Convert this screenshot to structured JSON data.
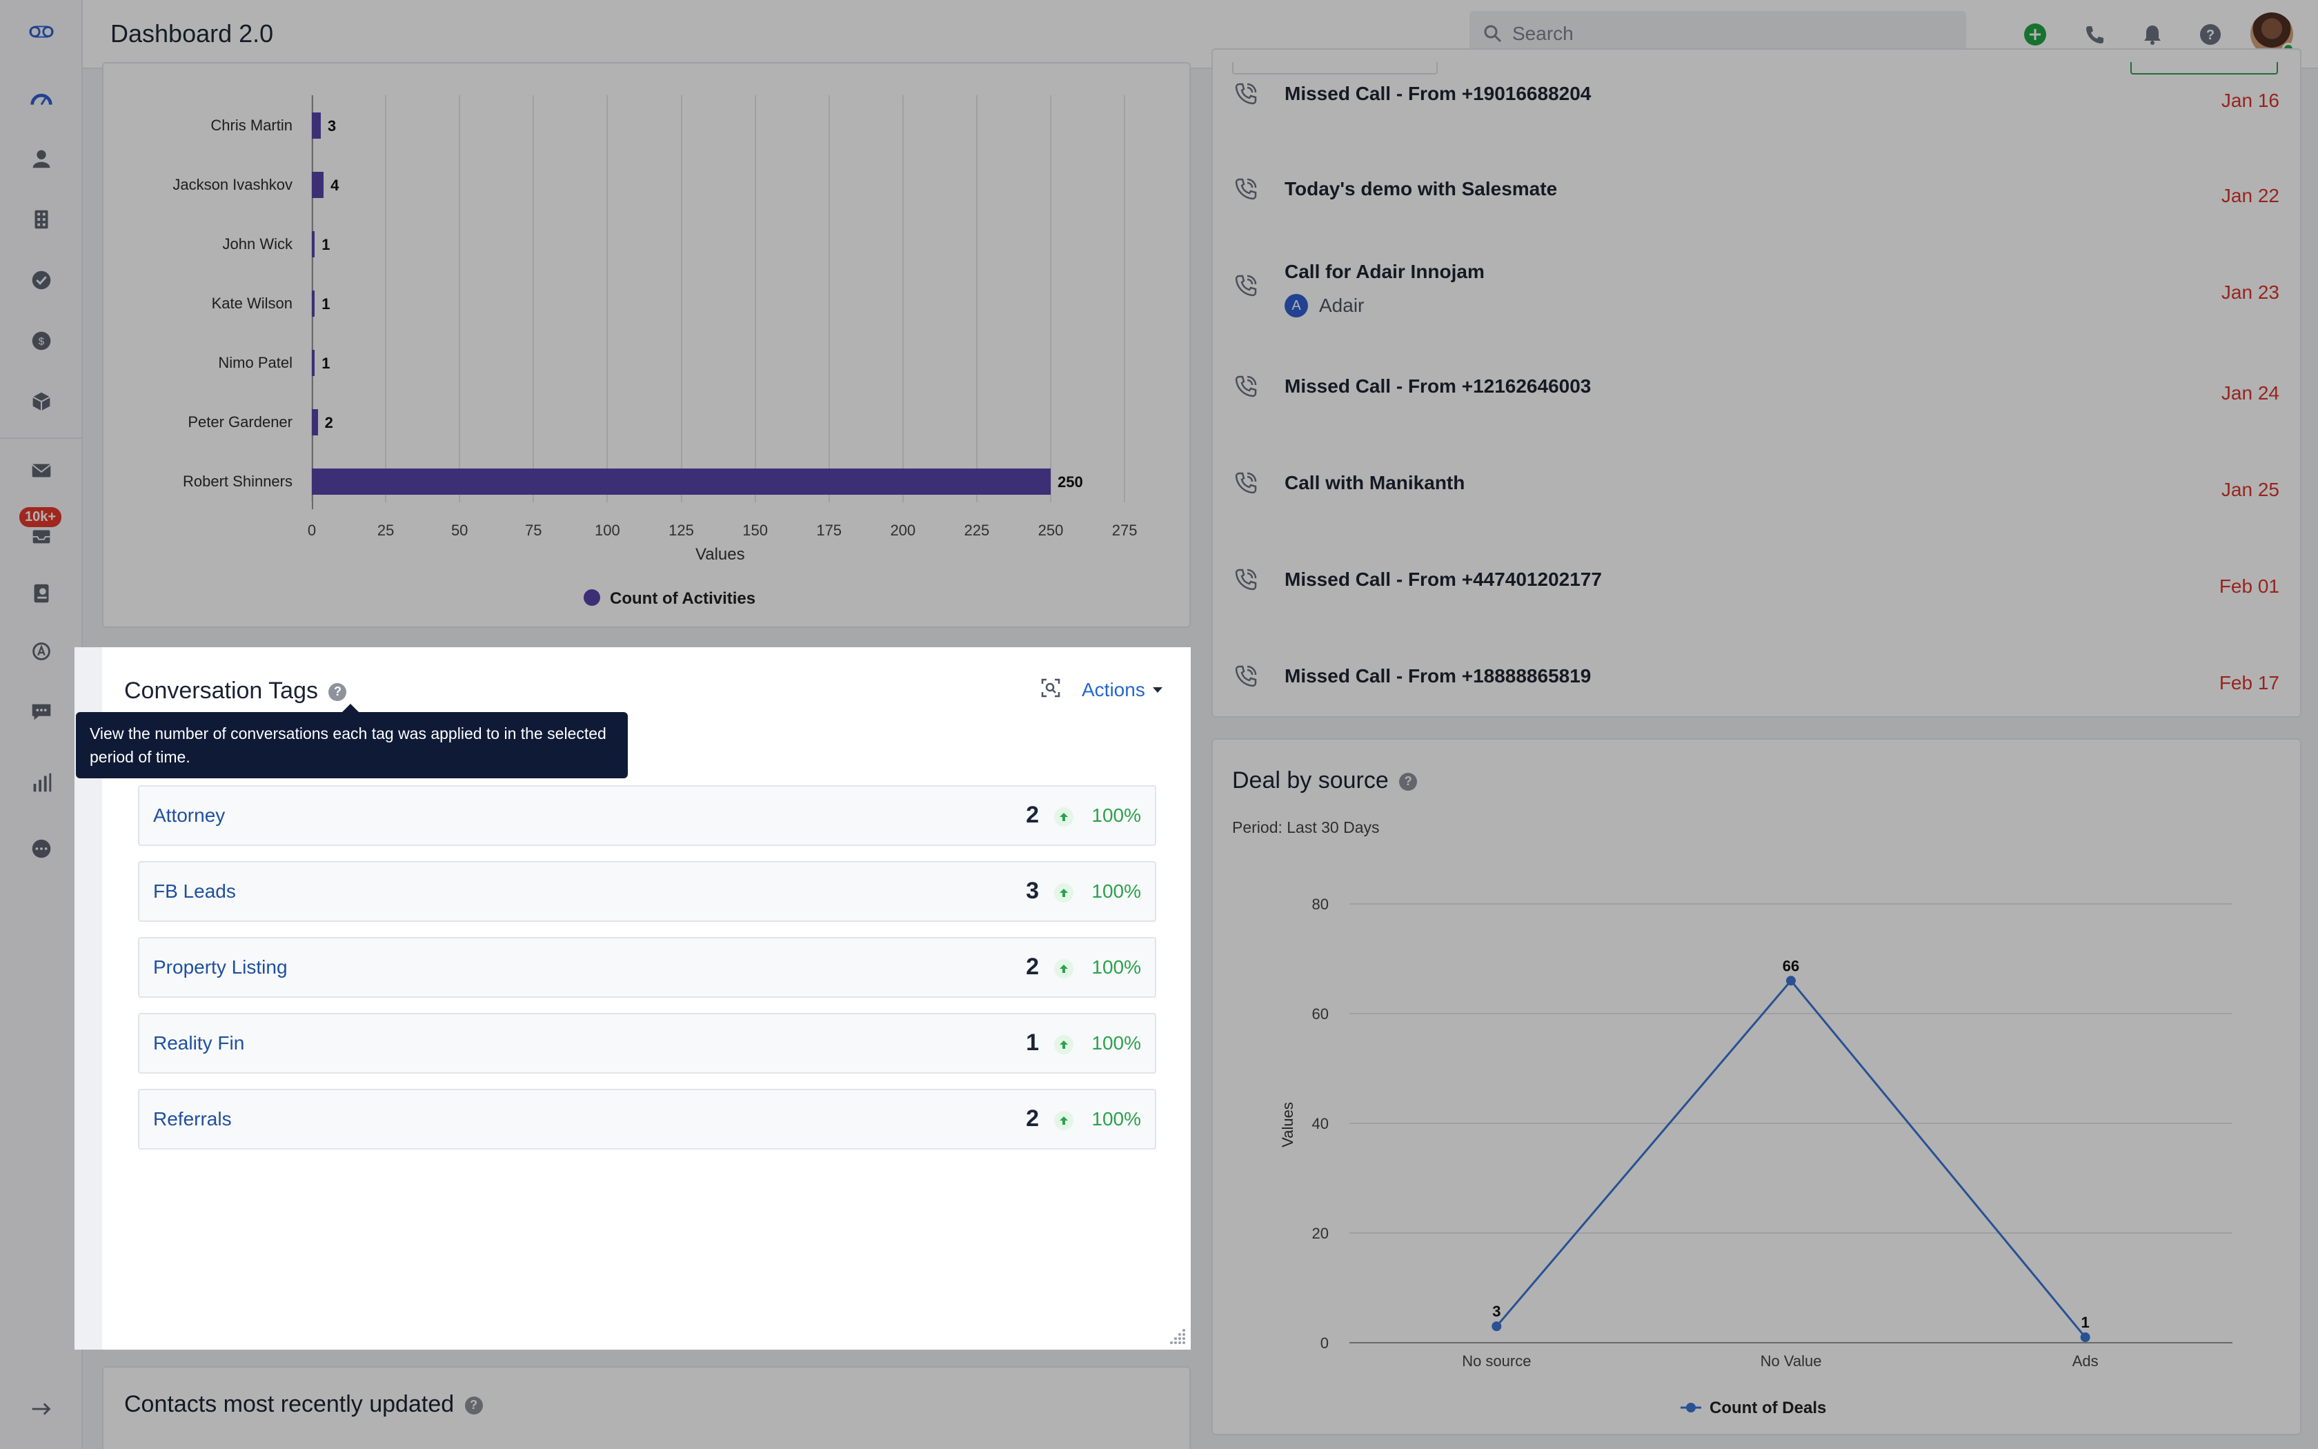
{
  "app": {
    "title": "Dashboard 2.0"
  },
  "search": {
    "placeholder": "Search"
  },
  "sidebar": {
    "badge": "10k+"
  },
  "activities_chart": {
    "xlabel": "Values",
    "legend": "Count of Activities",
    "ticks": [
      "0",
      "25",
      "50",
      "75",
      "100",
      "125",
      "150",
      "175",
      "200",
      "225",
      "250",
      "275"
    ]
  },
  "activity_list": [
    {
      "title": "Missed Call - From +19016688204",
      "date": "Jan 16"
    },
    {
      "title": "Today's demo with Salesmate",
      "date": "Jan 22"
    },
    {
      "title": "Call for Adair Innojam",
      "date": "Jan 23",
      "assignee_initial": "A",
      "assignee": "Adair"
    },
    {
      "title": "Missed Call - From +12162646003",
      "date": "Jan 24"
    },
    {
      "title": "Call with Manikanth",
      "date": "Jan 25"
    },
    {
      "title": "Missed Call - From +447401202177",
      "date": "Feb 01"
    },
    {
      "title": "Missed Call - From +18888865819",
      "date": "Feb 17"
    }
  ],
  "conversation_tags": {
    "title": "Conversation Tags",
    "help": "?",
    "actions_label": "Actions",
    "tooltip": "View the number of conversations each tag was applied to in the selected period of time.",
    "tags": [
      {
        "name": "Attorney",
        "count": "2",
        "change": "100%"
      },
      {
        "name": "FB Leads",
        "count": "3",
        "change": "100%"
      },
      {
        "name": "Property Listing",
        "count": "2",
        "change": "100%"
      },
      {
        "name": "Reality Fin",
        "count": "1",
        "change": "100%"
      },
      {
        "name": "Referrals",
        "count": "2",
        "change": "100%"
      }
    ]
  },
  "contacts_card": {
    "title": "Contacts most recently updated",
    "help": "?"
  },
  "deal_by_source": {
    "title": "Deal by source",
    "help": "?",
    "period": "Period: Last 30 Days",
    "ylabel": "Values",
    "legend": "Count of Deals",
    "yticks": [
      "0",
      "20",
      "40",
      "60",
      "80"
    ]
  },
  "colors": {
    "bar": "#5644a8",
    "line": "#3b74d4",
    "date_red": "#d9342b",
    "link_blue": "#1f4f9f",
    "positive_green": "#2ba24c"
  },
  "chart_data": [
    {
      "type": "bar",
      "orientation": "horizontal",
      "categories": [
        "Chris Martin",
        "Jackson Ivashkov",
        "John Wick",
        "Kate Wilson",
        "Nimo Patel",
        "Peter Gardener",
        "Robert Shinners"
      ],
      "series": [
        {
          "name": "Count of Activities",
          "values": [
            3,
            4,
            1,
            1,
            1,
            2,
            250
          ]
        }
      ],
      "xlabel": "Values",
      "xlim": [
        0,
        275
      ]
    },
    {
      "type": "line",
      "categories": [
        "No source",
        "No Value",
        "Ads"
      ],
      "series": [
        {
          "name": "Count of Deals",
          "values": [
            3,
            66,
            1
          ]
        }
      ],
      "title": "Deal by source",
      "ylabel": "Values",
      "ylim": [
        0,
        80
      ]
    }
  ]
}
